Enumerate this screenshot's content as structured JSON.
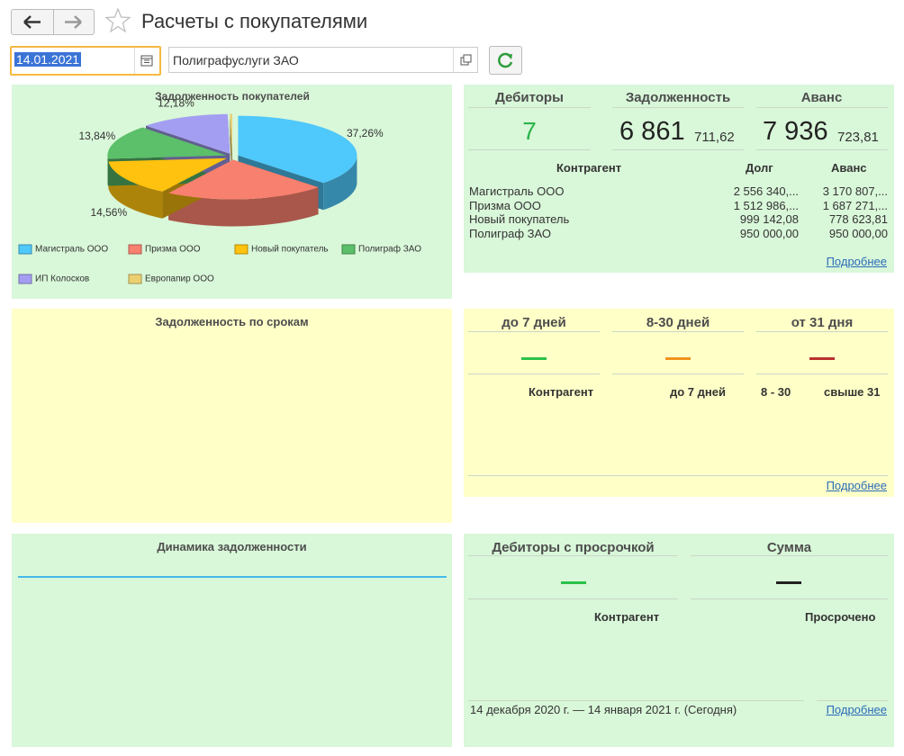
{
  "header": {
    "title": "Расчеты с покупателями"
  },
  "filters": {
    "date": "14.01.2021",
    "counterparty": "Полиграфуслуги ЗАО"
  },
  "chart_data": {
    "type": "pie",
    "title": "Задолженность покупателей",
    "categories": [
      "Магистраль ООО",
      "Призма ООО",
      "Новый покупатель",
      "Полиграф ЗАО",
      "ИП Колосков",
      "Европапир ООО"
    ],
    "values": [
      37.26,
      21.86,
      14.56,
      13.84,
      12.18,
      0.3
    ],
    "value_labels": [
      "37,26%",
      null,
      "14,56%",
      "13,84%",
      "12,18%",
      null
    ],
    "colors": [
      "#4fc8fb",
      "#f8806e",
      "#ffc20e",
      "#5cbf6a",
      "#a49ef2",
      "#ecd070"
    ],
    "legend": "bottom"
  },
  "debtors_panel": {
    "headers": [
      "Дебиторы",
      "Задолженность",
      "Аванс"
    ],
    "debtors_count": 7,
    "debt_whole": "6 861",
    "debt_fraction": "711,62",
    "advance_whole": "7 936",
    "advance_fraction": "723,81",
    "table": {
      "columns": [
        "Контрагент",
        "Долг",
        "Аванс"
      ],
      "rows": [
        [
          "Магистраль ООО",
          "2 556 340,...",
          "3 170 807,..."
        ],
        [
          "Призма ООО",
          "1 512 986,...",
          "1 687 271,..."
        ],
        [
          "Новый покупатель",
          "999 142,08",
          "778 623,81"
        ],
        [
          "Полиграф ЗАО",
          "950 000,00",
          "950 000,00"
        ]
      ]
    },
    "link": "Подробнее"
  },
  "aging_chart": {
    "title": "Задолженность по срокам"
  },
  "aging_panel": {
    "headers": [
      "до 7 дней",
      "8-30 дней",
      "от 31 дня"
    ],
    "columns": [
      "Контрагент",
      "до 7 дней",
      "8 - 30",
      "свыше 31"
    ],
    "link": "Подробнее"
  },
  "dynamics_chart": {
    "title": "Динамика задолженности"
  },
  "overdue_panel": {
    "headers": [
      "Дебиторы с просрочкой",
      "Сумма"
    ],
    "columns": [
      "Контрагент",
      "Просрочено"
    ],
    "period": "14 декабря 2020 г. — 14 января 2021 г. (Сегодня)",
    "link": "Подробнее"
  }
}
